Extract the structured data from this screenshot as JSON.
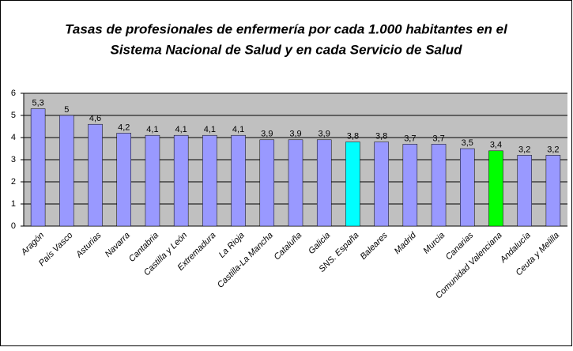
{
  "chart_data": {
    "type": "bar",
    "title": [
      "Tasas de profesionales de enfermería por cada 1.000 habitantes en el",
      "Sistema Nacional de Salud y en cada Servicio de Salud"
    ],
    "categories": [
      "Aragón",
      "País Vasco",
      "Asturias",
      "Navarra",
      "Cantabria",
      "Castilla y León",
      "Extremadura",
      "La Rioja",
      "Castilla-La Mancha",
      "Cataluña",
      "Galicia",
      "SNS. España",
      "Baleares",
      "Madrid",
      "Murcia",
      "Canarias",
      "Comunidad Valenciana",
      "Andalucía",
      "Ceuta y Melilla"
    ],
    "values": [
      5.3,
      5,
      4.6,
      4.2,
      4.1,
      4.1,
      4.1,
      4.1,
      3.9,
      3.9,
      3.9,
      3.8,
      3.8,
      3.7,
      3.7,
      3.5,
      3.4,
      3.2,
      3.2
    ],
    "value_labels": [
      "5,3",
      "5",
      "4,6",
      "4,2",
      "4,1",
      "4,1",
      "4,1",
      "4,1",
      "3,9",
      "3,9",
      "3,9",
      "3,8",
      "3,8",
      "3,7",
      "3,7",
      "3,5",
      "3,4",
      "3,2",
      "3,2"
    ],
    "colors": [
      "#9999ff",
      "#9999ff",
      "#9999ff",
      "#9999ff",
      "#9999ff",
      "#9999ff",
      "#9999ff",
      "#9999ff",
      "#9999ff",
      "#9999ff",
      "#9999ff",
      "#00ffff",
      "#9999ff",
      "#9999ff",
      "#9999ff",
      "#9999ff",
      "#00ff00",
      "#9999ff",
      "#9999ff"
    ],
    "ylim": [
      0,
      6
    ],
    "yticks": [
      0,
      1,
      2,
      3,
      4,
      5,
      6
    ],
    "grid": true
  }
}
